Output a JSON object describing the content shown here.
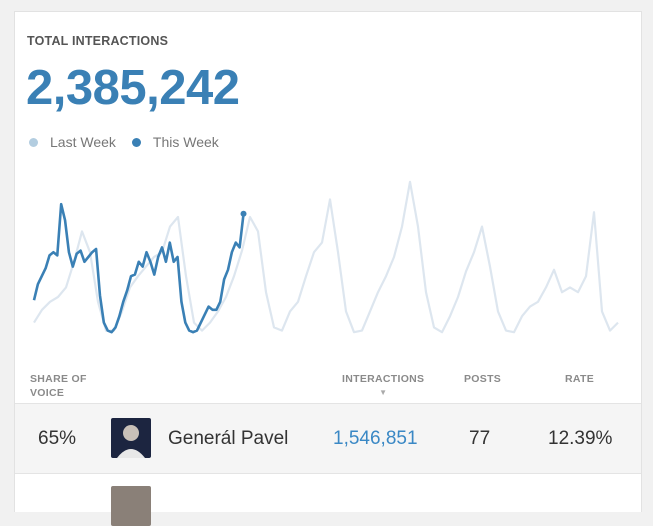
{
  "widget": {
    "title": "TOTAL INTERACTIONS",
    "total": "2,385,242",
    "legend": [
      {
        "label": "Last Week",
        "color": "#b3cde0"
      },
      {
        "label": "This Week",
        "color": "#3a80b5"
      }
    ]
  },
  "chart_data": {
    "type": "line",
    "title": "TOTAL INTERACTIONS",
    "xlabel": "",
    "ylabel": "",
    "grid": false,
    "xlim": [
      0,
      73
    ],
    "ylim": [
      0,
      100
    ],
    "series": [
      {
        "name": "Last Week",
        "color": "#dde6ef",
        "x_step": 1,
        "values": [
          9,
          17,
          22,
          25,
          31,
          47,
          66,
          53,
          22,
          4,
          4,
          16,
          31,
          38,
          44,
          50,
          53,
          69,
          75,
          38,
          9,
          4,
          9,
          16,
          25,
          38,
          54,
          75,
          66,
          28,
          6,
          4,
          16,
          22,
          38,
          53,
          59,
          86,
          53,
          16,
          3,
          4,
          16,
          28,
          38,
          50,
          69,
          97,
          69,
          28,
          6,
          3,
          13,
          25,
          41,
          53,
          69,
          44,
          16,
          4,
          3,
          13,
          19,
          22,
          31,
          42,
          28,
          31,
          28,
          38,
          78,
          16,
          4,
          9
        ]
      },
      {
        "name": "This Week",
        "color": "#3a80b5",
        "x_step": 0.485,
        "values": [
          23,
          33,
          38,
          43,
          51,
          53,
          51,
          83,
          73,
          53,
          44,
          52,
          54,
          47,
          50,
          53,
          55,
          26,
          9,
          4,
          3,
          6,
          13,
          22,
          29,
          38,
          39,
          47,
          44,
          53,
          47,
          39,
          50,
          56,
          47,
          59,
          47,
          50,
          22,
          9,
          4,
          3,
          4,
          9,
          14,
          19,
          17,
          17,
          22,
          36,
          42,
          53,
          59,
          56,
          77
        ]
      }
    ]
  },
  "table": {
    "headers": {
      "share_line1": "SHARE OF",
      "share_line2": "VOICE",
      "interactions": "INTERACTIONS",
      "posts": "POSTS",
      "rate": "RATE"
    },
    "rows": [
      {
        "share": "65%",
        "name": "Generál Pavel",
        "interactions": "1,546,851",
        "posts": "77",
        "rate": "12.39%"
      }
    ]
  }
}
